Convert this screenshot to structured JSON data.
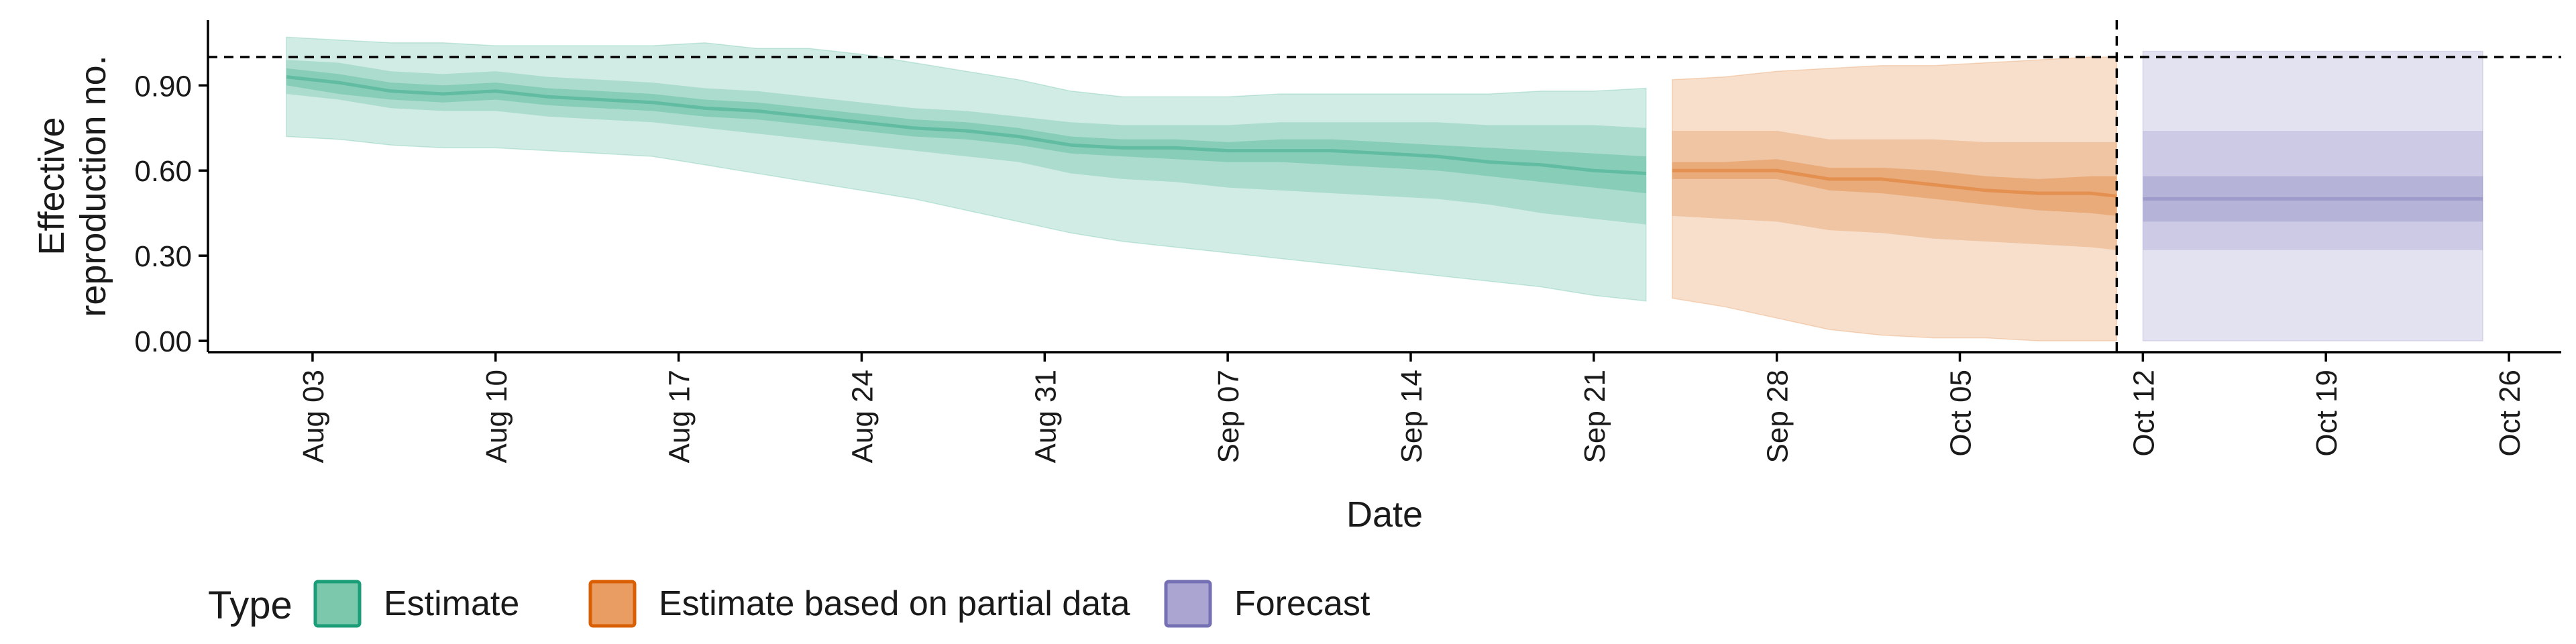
{
  "chart_data": {
    "type": "area",
    "title": "",
    "xlabel": "Date",
    "ylabel": "Effective\nreproduction no.",
    "x_ticks": [
      "Aug 03",
      "Aug 10",
      "Aug 17",
      "Aug 24",
      "Aug 31",
      "Sep 07",
      "Sep 14",
      "Sep 21",
      "Sep 28",
      "Oct 05",
      "Oct 12",
      "Oct 19",
      "Oct 26"
    ],
    "y_ticks": [
      "0.00",
      "0.30",
      "0.60",
      "0.90"
    ],
    "xlim": [
      "2020-07-30",
      "2020-10-28"
    ],
    "ylim": [
      -0.04,
      1.13
    ],
    "grid": false,
    "reference_line_y": 1.0,
    "forecast_date_line": "2020-10-11",
    "legend": {
      "title": "Type",
      "position": "bottom-left",
      "items": [
        {
          "label": "Estimate",
          "color": "#1b9e77",
          "fill": "#7cc8ad"
        },
        {
          "label": "Estimate based on partial data",
          "color": "#d95f02",
          "fill": "#ea9d63"
        },
        {
          "label": "Forecast",
          "color": "#7570b3",
          "fill": "#aaa6d1"
        }
      ]
    },
    "series": [
      {
        "name": "Estimate",
        "color": "#1b9e77",
        "x": [
          "2020-08-02",
          "2020-08-04",
          "2020-08-06",
          "2020-08-08",
          "2020-08-10",
          "2020-08-12",
          "2020-08-14",
          "2020-08-16",
          "2020-08-18",
          "2020-08-20",
          "2020-08-22",
          "2020-08-24",
          "2020-08-26",
          "2020-08-28",
          "2020-08-30",
          "2020-09-01",
          "2020-09-03",
          "2020-09-05",
          "2020-09-07",
          "2020-09-09",
          "2020-09-11",
          "2020-09-13",
          "2020-09-15",
          "2020-09-17",
          "2020-09-19",
          "2020-09-21",
          "2020-09-23"
        ],
        "median": [
          0.93,
          0.91,
          0.88,
          0.87,
          0.88,
          0.86,
          0.85,
          0.84,
          0.82,
          0.81,
          0.79,
          0.77,
          0.75,
          0.74,
          0.72,
          0.69,
          0.68,
          0.68,
          0.67,
          0.67,
          0.67,
          0.66,
          0.65,
          0.63,
          0.62,
          0.6,
          0.59
        ],
        "lower_50": [
          0.9,
          0.87,
          0.85,
          0.84,
          0.85,
          0.83,
          0.82,
          0.81,
          0.79,
          0.78,
          0.76,
          0.74,
          0.72,
          0.71,
          0.69,
          0.66,
          0.65,
          0.64,
          0.63,
          0.63,
          0.62,
          0.61,
          0.6,
          0.58,
          0.56,
          0.54,
          0.52
        ],
        "upper_50": [
          0.96,
          0.94,
          0.91,
          0.9,
          0.91,
          0.89,
          0.88,
          0.87,
          0.85,
          0.84,
          0.82,
          0.8,
          0.78,
          0.77,
          0.75,
          0.72,
          0.71,
          0.71,
          0.7,
          0.71,
          0.71,
          0.7,
          0.69,
          0.68,
          0.67,
          0.66,
          0.65
        ],
        "lower_90": [
          0.87,
          0.85,
          0.82,
          0.81,
          0.81,
          0.79,
          0.78,
          0.77,
          0.75,
          0.73,
          0.71,
          0.69,
          0.67,
          0.65,
          0.63,
          0.59,
          0.57,
          0.56,
          0.54,
          0.53,
          0.52,
          0.51,
          0.5,
          0.48,
          0.45,
          0.43,
          0.41
        ],
        "upper_90": [
          0.99,
          0.98,
          0.95,
          0.94,
          0.95,
          0.93,
          0.92,
          0.91,
          0.89,
          0.88,
          0.86,
          0.84,
          0.82,
          0.81,
          0.79,
          0.77,
          0.76,
          0.76,
          0.76,
          0.77,
          0.77,
          0.77,
          0.77,
          0.76,
          0.76,
          0.76,
          0.75
        ],
        "lower_ci": [
          0.72,
          0.71,
          0.69,
          0.68,
          0.68,
          0.67,
          0.66,
          0.65,
          0.62,
          0.59,
          0.56,
          0.53,
          0.5,
          0.46,
          0.42,
          0.38,
          0.35,
          0.33,
          0.31,
          0.29,
          0.27,
          0.25,
          0.23,
          0.21,
          0.19,
          0.16,
          0.14
        ],
        "upper_ci": [
          1.07,
          1.06,
          1.05,
          1.05,
          1.04,
          1.04,
          1.04,
          1.04,
          1.05,
          1.03,
          1.03,
          1.01,
          0.98,
          0.95,
          0.92,
          0.88,
          0.86,
          0.86,
          0.86,
          0.87,
          0.87,
          0.87,
          0.87,
          0.87,
          0.88,
          0.88,
          0.89
        ]
      },
      {
        "name": "Estimate based on partial data",
        "color": "#d95f02",
        "x": [
          "2020-09-24",
          "2020-09-26",
          "2020-09-28",
          "2020-09-30",
          "2020-10-02",
          "2020-10-04",
          "2020-10-06",
          "2020-10-08",
          "2020-10-10",
          "2020-10-11"
        ],
        "median": [
          0.6,
          0.6,
          0.6,
          0.57,
          0.57,
          0.55,
          0.53,
          0.52,
          0.52,
          0.51
        ],
        "lower_50": [
          0.57,
          0.57,
          0.57,
          0.53,
          0.52,
          0.5,
          0.48,
          0.46,
          0.45,
          0.44
        ],
        "upper_50": [
          0.63,
          0.63,
          0.64,
          0.61,
          0.61,
          0.6,
          0.58,
          0.57,
          0.58,
          0.58
        ],
        "lower_90": [
          0.44,
          0.43,
          0.42,
          0.39,
          0.38,
          0.36,
          0.35,
          0.34,
          0.33,
          0.32
        ],
        "upper_90": [
          0.74,
          0.74,
          0.74,
          0.71,
          0.71,
          0.71,
          0.7,
          0.7,
          0.7,
          0.7
        ],
        "lower_ci": [
          0.15,
          0.12,
          0.08,
          0.04,
          0.02,
          0.01,
          0.01,
          0.0,
          0.0,
          0.0
        ],
        "upper_ci": [
          0.92,
          0.93,
          0.95,
          0.96,
          0.97,
          0.97,
          0.98,
          0.99,
          1.0,
          1.0
        ]
      },
      {
        "name": "Forecast",
        "color": "#7570b3",
        "x": [
          "2020-10-12",
          "2020-10-25"
        ],
        "median": [
          0.5,
          0.5
        ],
        "lower_50": [
          0.42,
          0.42
        ],
        "upper_50": [
          0.58,
          0.58
        ],
        "lower_90": [
          0.32,
          0.32
        ],
        "upper_90": [
          0.74,
          0.74
        ],
        "lower_ci": [
          0.0,
          0.0
        ],
        "upper_ci": [
          1.02,
          1.02
        ]
      }
    ]
  }
}
